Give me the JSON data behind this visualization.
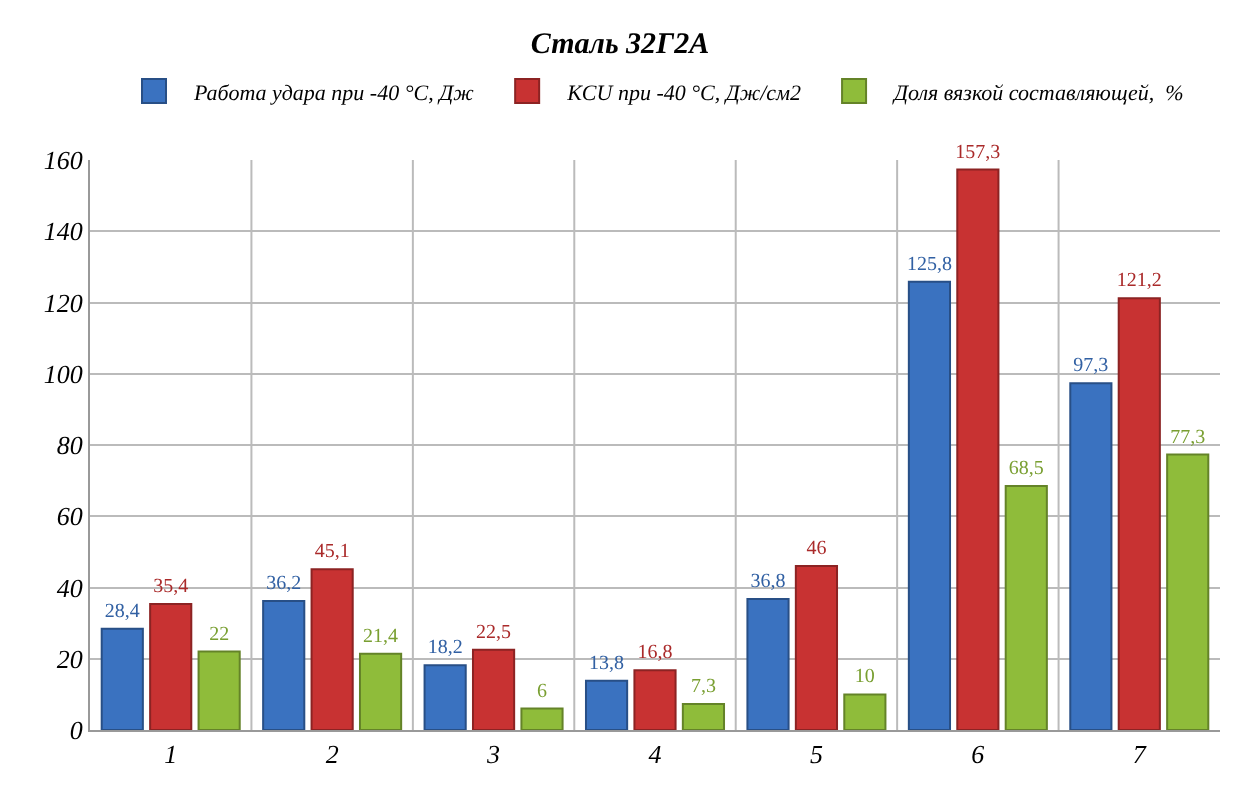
{
  "chart_data": {
    "type": "bar",
    "title": "Сталь 32Г2А",
    "categories": [
      "1",
      "2",
      "3",
      "4",
      "5",
      "6",
      "7"
    ],
    "series": [
      {
        "name": "Работа удара при -40 °С, Дж",
        "color": "#3a72c0",
        "values": [
          28.4,
          36.2,
          18.2,
          13.8,
          36.8,
          125.8,
          97.3
        ],
        "value_labels": [
          "28,4",
          "36,2",
          "18,2",
          "13,8",
          "36,8",
          "125,8",
          "97,3"
        ]
      },
      {
        "name": "KCU при -40 °С, Дж/см2",
        "color": "#c83232",
        "values": [
          35.4,
          45.1,
          22.5,
          16.8,
          46,
          157.3,
          121.2
        ],
        "value_labels": [
          "35,4",
          "45,1",
          "22,5",
          "16,8",
          "46",
          "157,3",
          "121,2"
        ]
      },
      {
        "name": "Доля вязкой составляющей,  %",
        "color": "#8fbc3a",
        "values": [
          22,
          21.4,
          6,
          7.3,
          10,
          68.5,
          77.3
        ],
        "value_labels": [
          "22",
          "21,4",
          "6",
          "7,3",
          "10",
          "68,5",
          "77,3"
        ]
      }
    ],
    "ylim": [
      0,
      160
    ],
    "yticks": [
      0,
      20,
      40,
      60,
      80,
      100,
      120,
      140,
      160
    ],
    "grid": true,
    "legend": "top"
  }
}
